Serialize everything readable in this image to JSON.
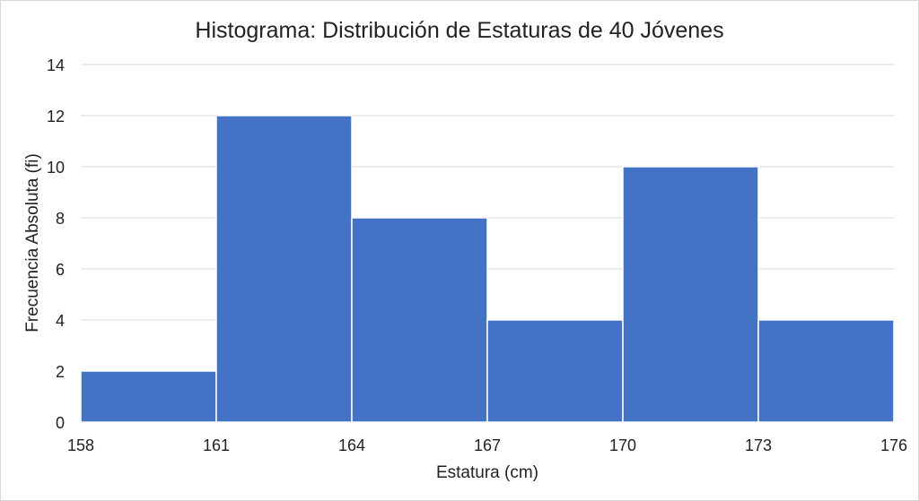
{
  "chart_data": {
    "type": "bar",
    "title": "Histograma: Distribución de Estaturas de 40 Jóvenes",
    "xlabel": "Estatura (cm)",
    "ylabel": "Frecuencia Absoluta (fi)",
    "bin_edges": [
      158,
      161,
      164,
      167,
      170,
      173,
      176
    ],
    "x_tick_labels": [
      "158",
      "161",
      "164",
      "167",
      "170",
      "173",
      "176"
    ],
    "values": [
      2,
      12,
      8,
      4,
      10,
      4
    ],
    "ylim": [
      0,
      14
    ],
    "y_ticks": [
      0,
      2,
      4,
      6,
      8,
      10,
      12,
      14
    ],
    "grid": true,
    "legend": "none",
    "bar_color": "#4472C4"
  }
}
